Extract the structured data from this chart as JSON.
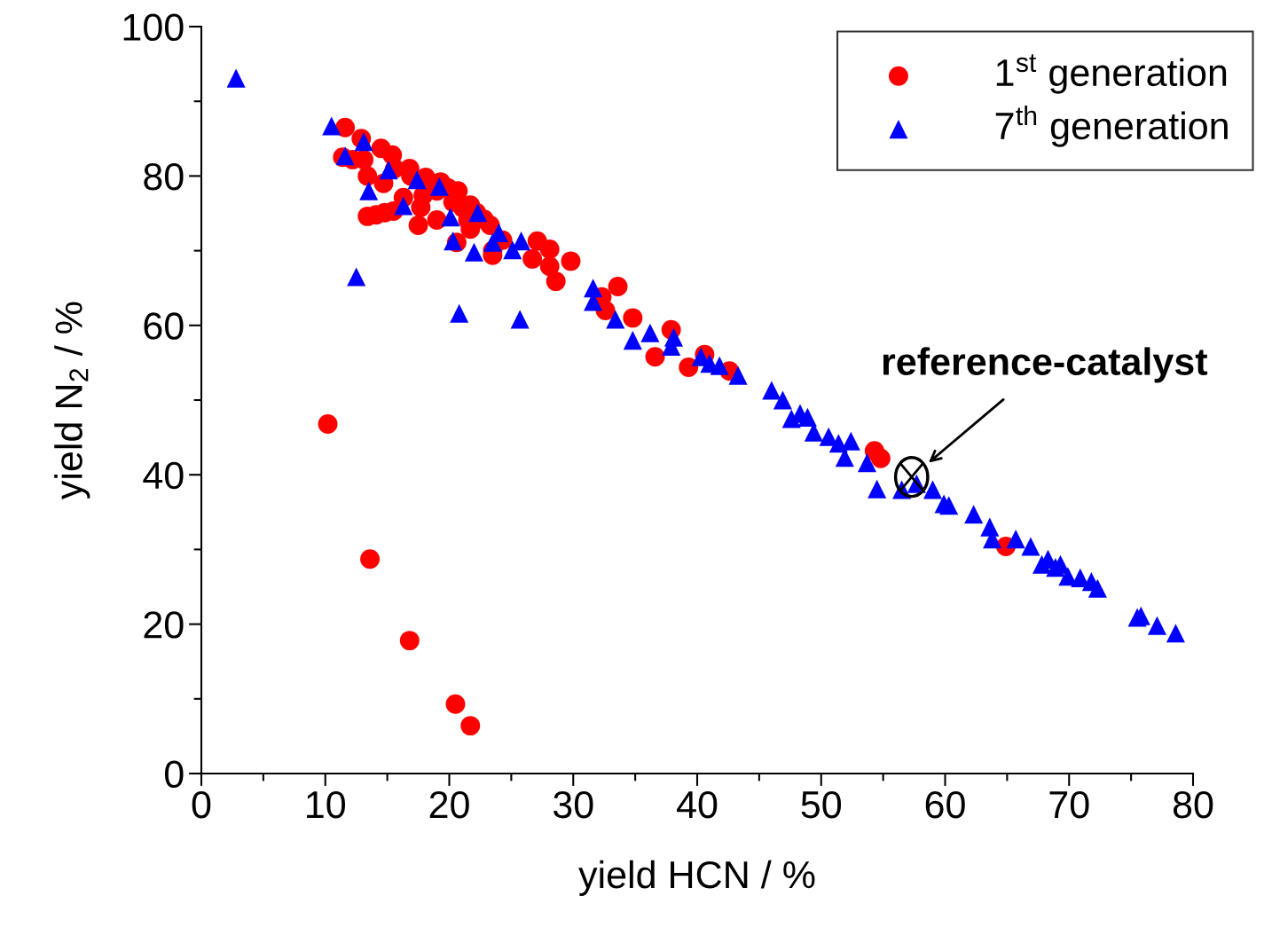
{
  "chart_data": {
    "type": "scatter",
    "xlabel": "yield HCN / %",
    "ylabel": "yield N$_{2}$ / %",
    "xlim": [
      0,
      80
    ],
    "xticks": [
      0,
      10,
      20,
      30,
      40,
      50,
      60,
      70,
      80
    ],
    "ylim": [
      0,
      100
    ],
    "yticks": [
      0,
      20,
      40,
      60,
      80,
      100
    ],
    "grid": false,
    "legend": "top right",
    "series": [
      {
        "name": "1$^{st}$ generation",
        "color": "#ff0000",
        "marker": "circle",
        "x": [
          11.6,
          11.4,
          12.2,
          12.9,
          13.1,
          13.4,
          13.4,
          14.1,
          14.5,
          14.7,
          14.8,
          15.4,
          15.5,
          15.6,
          16.3,
          16.8,
          16.9,
          17.5,
          17.7,
          18.1,
          17.9,
          19.0,
          19.3,
          19.0,
          19.9,
          20.7,
          20.3,
          20.6,
          21.1,
          21.5,
          21.7,
          22.2,
          21.7,
          22.8,
          23.3,
          23.5,
          23.5,
          24.3,
          26.7,
          27.1,
          28.1,
          28.1,
          28.6,
          29.8,
          32.3,
          32.6,
          33.6,
          34.8,
          36.6,
          37.9,
          39.3,
          40.6,
          42.6,
          54.3,
          54.8,
          64.9,
          10.2,
          13.6,
          16.8,
          20.5,
          21.7
        ],
        "values": [
          86.5,
          82.5,
          82.2,
          85.0,
          82.2,
          80.0,
          74.6,
          74.8,
          83.7,
          79.0,
          75.1,
          82.8,
          75.3,
          81.0,
          77.1,
          81.0,
          80.0,
          73.4,
          75.8,
          79.8,
          77.4,
          74.1,
          79.2,
          78.0,
          78.4,
          78.0,
          76.5,
          71.1,
          75.7,
          74.1,
          76.1,
          75.1,
          72.9,
          74.2,
          73.4,
          69.4,
          70.0,
          71.4,
          68.9,
          71.3,
          70.2,
          67.9,
          65.9,
          68.6,
          63.8,
          62.0,
          65.2,
          61.0,
          55.8,
          59.4,
          54.4,
          56.1,
          53.9,
          43.2,
          42.2,
          30.4,
          46.8,
          28.7,
          17.8,
          9.3,
          6.4
        ]
      },
      {
        "name": "7$^{th}$ generation",
        "color": "#0000ff",
        "marker": "triangle",
        "x": [
          2.8,
          10.5,
          11.6,
          12.5,
          13.1,
          13.5,
          15.1,
          16.3,
          17.4,
          19.2,
          20.1,
          20.3,
          20.8,
          22.0,
          22.3,
          23.5,
          24.0,
          25.1,
          25.8,
          25.7,
          31.6,
          31.6,
          33.4,
          34.8,
          36.2,
          37.9,
          38.1,
          40.3,
          41.0,
          41.8,
          43.3,
          46.0,
          46.9,
          47.6,
          48.3,
          48.9,
          49.4,
          50.6,
          51.4,
          52.4,
          51.9,
          53.7,
          54.5,
          56.5,
          57.7,
          59.0,
          59.9,
          60.3,
          62.3,
          63.6,
          63.8,
          65.7,
          66.9,
          67.8,
          68.3,
          68.9,
          69.3,
          69.9,
          70.9,
          71.8,
          72.3,
          75.5,
          75.8,
          77.1,
          78.6
        ],
        "values": [
          93.1,
          86.7,
          82.7,
          66.5,
          84.6,
          78.0,
          80.8,
          76.0,
          79.5,
          78.6,
          74.5,
          71.3,
          61.6,
          69.8,
          75.1,
          71.1,
          72.4,
          70.1,
          71.3,
          60.8,
          65.0,
          63.2,
          60.8,
          58.0,
          59.0,
          57.2,
          58.4,
          55.8,
          54.9,
          54.6,
          53.3,
          51.3,
          50.0,
          47.5,
          48.2,
          47.7,
          45.7,
          45.1,
          44.2,
          44.5,
          42.3,
          41.6,
          38.1,
          38.0,
          38.8,
          38.0,
          36.1,
          35.9,
          34.7,
          33.0,
          31.4,
          31.4,
          30.4,
          28.0,
          28.7,
          27.6,
          28.0,
          26.4,
          26.2,
          25.7,
          24.8,
          20.9,
          21.1,
          19.8,
          18.8
        ]
      }
    ],
    "annotations": [
      {
        "text": "reference-catalyst",
        "x": 57.3,
        "y": 39.7
      }
    ]
  }
}
